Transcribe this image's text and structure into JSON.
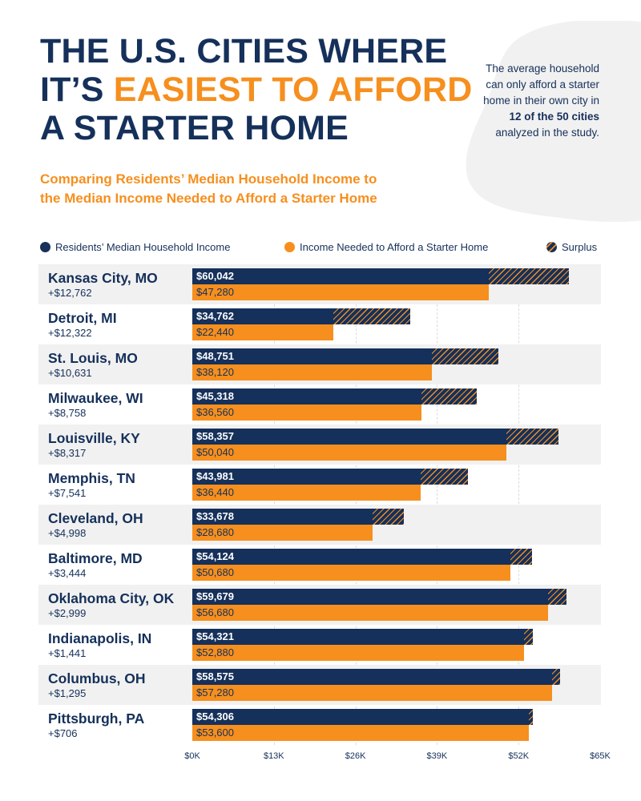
{
  "header": {
    "title_line1": "THE U.S. CITIES WHERE",
    "title_line2_prefix": "IT’S ",
    "title_line2_highlight": "EASIEST TO AFFORD",
    "title_line3": "A STARTER HOME",
    "subtitle_line1": "Comparing Residents’ Median Household Income to",
    "subtitle_line2": "the Median Income Needed to Afford a Starter Home"
  },
  "callout": {
    "pre": "The average household can only afford a starter home in their own city in ",
    "bold": "12 of the 50 cities",
    "post": " analyzed in the study."
  },
  "legend": {
    "income": "Residents’ Median Household Income",
    "needed": "Income Needed to Afford a Starter Home",
    "surplus": "Surplus"
  },
  "colors": {
    "navy": "#15305a",
    "orange": "#f68f1e",
    "band": "#f1f1f1"
  },
  "axis": {
    "ticks": [
      "$0K",
      "$13K",
      "$26K",
      "$39K",
      "$52K",
      "$65K"
    ]
  },
  "rows": [
    {
      "city": "Kansas City, MO",
      "diff": "+$12,762",
      "income_label": "$60,042",
      "needed_label": "$47,280"
    },
    {
      "city": "Detroit, MI",
      "diff": "+$12,322",
      "income_label": "$34,762",
      "needed_label": "$22,440"
    },
    {
      "city": "St. Louis, MO",
      "diff": "+$10,631",
      "income_label": "$48,751",
      "needed_label": "$38,120"
    },
    {
      "city": "Milwaukee, WI",
      "diff": "+$8,758",
      "income_label": "$45,318",
      "needed_label": "$36,560"
    },
    {
      "city": "Louisville, KY",
      "diff": "+$8,317",
      "income_label": "$58,357",
      "needed_label": "$50,040"
    },
    {
      "city": "Memphis, TN",
      "diff": "+$7,541",
      "income_label": "$43,981",
      "needed_label": "$36,440"
    },
    {
      "city": "Cleveland, OH",
      "diff": "+$4,998",
      "income_label": "$33,678",
      "needed_label": "$28,680"
    },
    {
      "city": "Baltimore, MD",
      "diff": "+$3,444",
      "income_label": "$54,124",
      "needed_label": "$50,680"
    },
    {
      "city": "Oklahoma City, OK",
      "diff": "+$2,999",
      "income_label": "$59,679",
      "needed_label": "$56,680"
    },
    {
      "city": "Indianapolis, IN",
      "diff": "+$1,441",
      "income_label": "$54,321",
      "needed_label": "$52,880"
    },
    {
      "city": "Columbus, OH",
      "diff": "+$1,295",
      "income_label": "$58,575",
      "needed_label": "$57,280"
    },
    {
      "city": "Pittsburgh, PA",
      "diff": "+$706",
      "income_label": "$54,306",
      "needed_label": "$53,600"
    }
  ],
  "chart_data": {
    "type": "bar",
    "orientation": "horizontal",
    "title": "The U.S. Cities Where It’s Easiest to Afford a Starter Home",
    "subtitle": "Comparing Residents’ Median Household Income to the Median Income Needed to Afford a Starter Home",
    "categories": [
      "Kansas City, MO",
      "Detroit, MI",
      "St. Louis, MO",
      "Milwaukee, WI",
      "Louisville, KY",
      "Memphis, TN",
      "Cleveland, OH",
      "Baltimore, MD",
      "Oklahoma City, OK",
      "Indianapolis, IN",
      "Columbus, OH",
      "Pittsburgh, PA"
    ],
    "series": [
      {
        "name": "Residents’ Median Household Income",
        "values": [
          60042,
          34762,
          48751,
          45318,
          58357,
          43981,
          33678,
          54124,
          59679,
          54321,
          58575,
          54306
        ]
      },
      {
        "name": "Income Needed to Afford a Starter Home",
        "values": [
          47280,
          22440,
          38120,
          36560,
          50040,
          36440,
          28680,
          50680,
          56680,
          52880,
          57280,
          53600
        ]
      },
      {
        "name": "Surplus",
        "values": [
          12762,
          12322,
          10631,
          8758,
          8317,
          7541,
          4998,
          3444,
          2999,
          1441,
          1295,
          706
        ]
      }
    ],
    "xlabel": "",
    "ylabel": "",
    "xlim": [
      0,
      65000
    ],
    "xticks": [
      "$0K",
      "$13K",
      "$26K",
      "$39K",
      "$52K",
      "$65K"
    ],
    "grid": true,
    "legend_position": "top"
  }
}
